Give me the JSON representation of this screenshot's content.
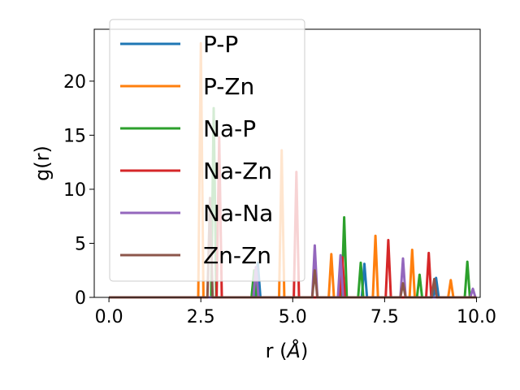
{
  "chart_data": {
    "type": "line",
    "title": "",
    "xlabel": "r (",
    "xlabel_unit": "Å",
    "xlabel_close": ")",
    "ylabel": "g(r)",
    "xlim": [
      -0.4,
      10.1
    ],
    "ylim": [
      0,
      24.8
    ],
    "xticks": [
      0.0,
      2.5,
      5.0,
      7.5,
      10.0
    ],
    "xtick_labels": [
      "0.0",
      "2.5",
      "5.0",
      "7.5",
      "10.0"
    ],
    "yticks": [
      0,
      5,
      10,
      15,
      20
    ],
    "ytick_labels": [
      "0",
      "5",
      "10",
      "15",
      "20"
    ],
    "grid": false,
    "legend_position": "upper-left",
    "peak_half_width": 0.07,
    "series": [
      {
        "name": "P-P",
        "color": "#1f77b4",
        "peaks": [
          [
            4.05,
            3.2
          ],
          [
            6.95,
            3.1
          ],
          [
            8.9,
            1.8
          ]
        ]
      },
      {
        "name": "P-Zn",
        "color": "#ff7f0e",
        "peaks": [
          [
            2.5,
            23.5
          ],
          [
            4.7,
            13.6
          ],
          [
            6.05,
            4.0
          ],
          [
            7.25,
            5.7
          ],
          [
            8.25,
            4.4
          ],
          [
            9.3,
            1.6
          ]
        ]
      },
      {
        "name": "Na-P",
        "color": "#2ca02c",
        "peaks": [
          [
            2.85,
            17.5
          ],
          [
            3.95,
            2.5
          ],
          [
            6.4,
            7.4
          ],
          [
            6.85,
            3.2
          ],
          [
            8.45,
            2.1
          ],
          [
            9.75,
            3.3
          ]
        ]
      },
      {
        "name": "Na-Zn",
        "color": "#d62728",
        "peaks": [
          [
            3.0,
            14.8
          ],
          [
            5.1,
            11.6
          ],
          [
            6.35,
            3.7
          ],
          [
            7.6,
            5.3
          ],
          [
            8.7,
            4.1
          ]
        ]
      },
      {
        "name": "Na-Na",
        "color": "#9467bd",
        "peaks": [
          [
            4.0,
            2.8
          ],
          [
            5.6,
            4.8
          ],
          [
            6.3,
            3.9
          ],
          [
            8.0,
            3.6
          ],
          [
            9.9,
            0.8
          ]
        ]
      },
      {
        "name": "Zn-Zn",
        "color": "#8c564b",
        "peaks": [
          [
            2.75,
            9.2
          ],
          [
            5.6,
            2.5
          ],
          [
            8.0,
            1.3
          ],
          [
            8.85,
            1.7
          ]
        ]
      }
    ]
  }
}
